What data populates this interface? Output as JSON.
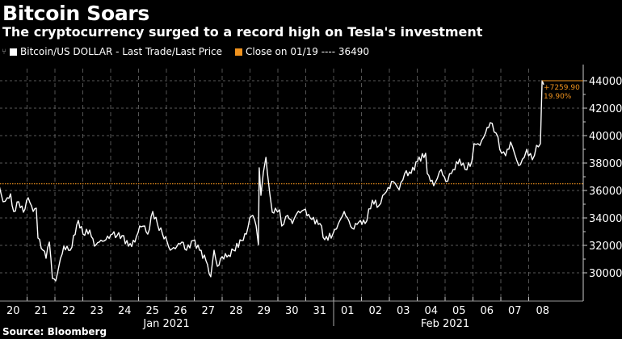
{
  "header": {
    "title": "Bitcoin Soars",
    "subtitle": "The cryptocurrency surged to a record high on Tesla's investment"
  },
  "footer": {
    "source": "Source: Bloomberg"
  },
  "colors": {
    "series": "#ffffff",
    "reference": "#f0931e",
    "grid": "#8a8a8a",
    "background": "#000000"
  },
  "chart_data": {
    "type": "line",
    "title": "Bitcoin Soars",
    "legend": [
      {
        "label": "Bitcoin/US DOLLAR - Last Trade/Last Price",
        "color": "#ffffff"
      },
      {
        "label": "Close on 01/19 ---- 36490",
        "color": "#f0931e"
      }
    ],
    "legend_placement": "top-left",
    "reference_line": {
      "label": "Close on 01/19",
      "value": 36490
    },
    "annotation": {
      "change": "+7259.90",
      "percent": "19.90%"
    },
    "ylim": [
      28000,
      45000
    ],
    "y_ticks": [
      "30000",
      "32000",
      "34000",
      "36000",
      "38000",
      "40000",
      "42000",
      "44000"
    ],
    "y_tick_values": [
      30000,
      32000,
      34000,
      36000,
      38000,
      40000,
      42000,
      44000
    ],
    "x_unit": "days since Jan 20 2021",
    "xlim": [
      0,
      20.9
    ],
    "x_tick_labels": [
      "20",
      "21",
      "22",
      "23",
      "24",
      "25",
      "26",
      "27",
      "28",
      "29",
      "30",
      "31",
      "01",
      "02",
      "03",
      "04",
      "05",
      "06",
      "07",
      "08"
    ],
    "x_groups": [
      {
        "label": "Jan 2021"
      },
      {
        "label": "Feb 2021"
      }
    ],
    "grid": true,
    "series": [
      {
        "name": "Bitcoin/US DOLLAR - Last Trade/Last Price",
        "x": [
          0,
          0.14,
          0.29,
          0.41,
          0.52,
          0.7,
          0.87,
          1.04,
          1.22,
          1.33,
          1.39,
          1.57,
          1.68,
          1.8,
          1.91,
          2.03,
          2.2,
          2.32,
          2.55,
          2.84,
          3.01,
          3.25,
          3.42,
          3.59,
          3.83,
          4.06,
          4.23,
          4.41,
          4.64,
          4.87,
          5.04,
          5.22,
          5.33,
          5.51,
          5.68,
          5.86,
          6.03,
          6.14,
          6.38,
          6.55,
          6.72,
          6.96,
          7.19,
          7.42,
          7.59,
          7.71,
          7.83,
          8.0,
          8.23,
          8.41,
          8.7,
          8.87,
          8.99,
          9.1,
          9.22,
          9.3,
          9.33,
          9.39,
          9.48,
          9.57,
          9.62,
          9.71,
          9.8,
          9.91,
          10.06,
          10.14,
          10.35,
          10.52,
          10.67,
          10.93,
          11.22,
          11.51,
          11.68,
          11.97,
          12.17,
          12.38,
          12.67,
          12.96,
          13.13,
          13.39,
          13.62,
          13.83,
          14.14,
          14.35,
          14.55,
          14.78,
          15.01,
          15.3,
          15.36,
          15.59,
          15.86,
          16.03,
          16.29,
          16.52,
          16.72,
          16.96,
          17.04,
          17.25,
          17.45,
          17.62,
          17.83,
          18.03,
          18.17,
          18.35,
          18.49,
          18.64,
          18.84,
          18.93,
          19.13,
          19.28,
          19.42,
          19.48,
          19.54
        ],
        "values": [
          36350,
          35180,
          35470,
          35760,
          34470,
          35180,
          34410,
          35470,
          34470,
          34710,
          32530,
          31650,
          31060,
          32240,
          29590,
          29410,
          31060,
          31940,
          31650,
          33820,
          32820,
          33120,
          31940,
          32240,
          32410,
          32820,
          32710,
          32710,
          31940,
          32240,
          33410,
          33410,
          32820,
          34470,
          33530,
          32820,
          32240,
          31650,
          31940,
          32240,
          31650,
          32350,
          31650,
          30880,
          29710,
          31650,
          30470,
          31180,
          31290,
          31650,
          32350,
          32820,
          34000,
          34180,
          33410,
          32060,
          37650,
          35650,
          37350,
          38410,
          37350,
          35760,
          34410,
          34710,
          34590,
          33410,
          34180,
          33590,
          34290,
          34590,
          33880,
          33590,
          32410,
          32820,
          33590,
          34470,
          33240,
          33820,
          33590,
          35290,
          34880,
          35760,
          36650,
          36060,
          37240,
          37240,
          38120,
          38710,
          37240,
          36350,
          37530,
          36650,
          37530,
          38290,
          37530,
          38120,
          39410,
          39290,
          40180,
          40940,
          40180,
          38710,
          38530,
          39530,
          38710,
          37820,
          38410,
          39000,
          38240,
          39290,
          39410,
          44000,
          43710
        ]
      }
    ]
  }
}
